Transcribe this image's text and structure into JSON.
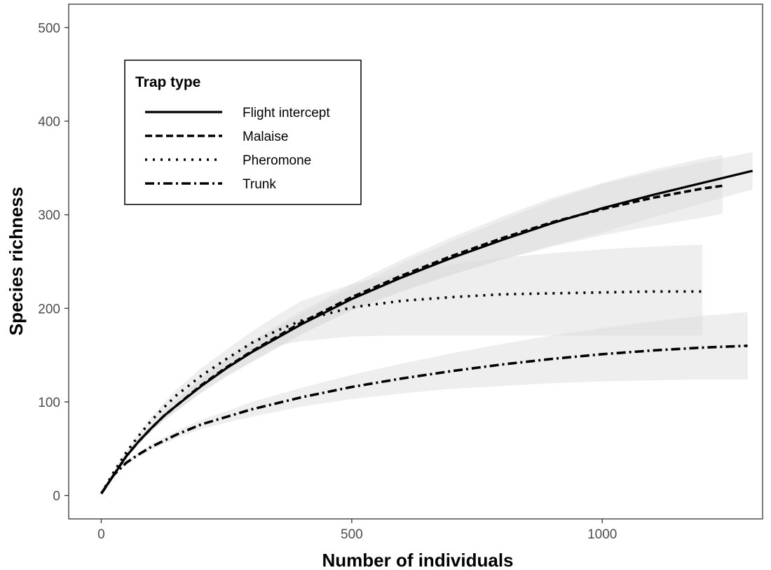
{
  "chart_data": {
    "type": "line",
    "xlabel": "Number of individuals",
    "ylabel": "Species richness",
    "xlim": [
      -65,
      1320
    ],
    "ylim": [
      -25,
      525
    ],
    "xticks": [
      0,
      500,
      1000
    ],
    "yticks": [
      0,
      100,
      200,
      300,
      400,
      500
    ],
    "grid": false,
    "legend": {
      "title": "Trap type",
      "position": "top-left"
    },
    "series": [
      {
        "name": "Flight intercept",
        "dash": "solid",
        "x": [
          0,
          25,
          50,
          75,
          100,
          125,
          150,
          200,
          250,
          300,
          400,
          500,
          600,
          700,
          800,
          900,
          1000,
          1100,
          1200,
          1300
        ],
        "y": [
          2,
          22,
          42,
          58,
          72,
          85,
          96,
          117,
          136,
          153,
          183,
          210,
          233,
          254,
          273,
          291,
          307,
          321,
          334,
          347
        ],
        "lower": [
          2,
          21,
          40,
          55,
          68,
          80,
          90,
          110,
          127,
          142,
          172,
          198,
          218,
          236,
          252,
          267,
          281,
          297,
          312,
          327
        ],
        "upper": [
          2,
          23,
          44,
          61,
          76,
          90,
          102,
          124,
          145,
          164,
          194,
          222,
          248,
          272,
          294,
          315,
          333,
          345,
          356,
          367
        ]
      },
      {
        "name": "Malaise",
        "dash": "dashed",
        "x": [
          0,
          25,
          50,
          75,
          100,
          125,
          150,
          200,
          250,
          300,
          400,
          500,
          600,
          700,
          800,
          900,
          1000,
          1100,
          1200,
          1240
        ],
        "y": [
          2,
          22,
          42,
          58,
          72,
          85,
          96,
          118,
          137,
          154,
          185,
          212,
          235,
          256,
          275,
          292,
          306,
          318,
          328,
          331
        ],
        "lower": [
          2,
          21,
          40,
          55,
          68,
          80,
          90,
          110,
          128,
          143,
          173,
          198,
          218,
          236,
          252,
          266,
          278,
          288,
          297,
          301
        ],
        "upper": [
          2,
          23,
          44,
          61,
          76,
          90,
          102,
          126,
          146,
          165,
          197,
          226,
          252,
          276,
          298,
          318,
          334,
          348,
          360,
          364
        ]
      },
      {
        "name": "Pheromone",
        "dash": "dotted",
        "x": [
          0,
          25,
          50,
          75,
          100,
          125,
          150,
          200,
          250,
          300,
          350,
          400,
          500,
          600,
          700,
          800,
          900,
          1000,
          1100,
          1200
        ],
        "y": [
          2,
          25,
          46,
          64,
          80,
          94,
          107,
          128,
          146,
          163,
          176,
          187,
          201,
          208,
          212,
          215,
          216,
          217,
          218,
          218
        ],
        "lower": [
          2,
          24,
          44,
          61,
          76,
          89,
          101,
          120,
          137,
          151,
          160,
          165,
          170,
          171,
          171,
          171,
          171,
          171,
          171,
          171
        ],
        "upper": [
          2,
          26,
          48,
          67,
          84,
          99,
          113,
          136,
          156,
          175,
          192,
          208,
          226,
          238,
          247,
          254,
          259,
          263,
          266,
          268
        ]
      },
      {
        "name": "Trunk",
        "dash": "dashdot",
        "x": [
          0,
          25,
          50,
          75,
          100,
          150,
          200,
          250,
          300,
          400,
          500,
          600,
          700,
          800,
          900,
          1000,
          1100,
          1200,
          1290
        ],
        "y": [
          2,
          22,
          35,
          44,
          52,
          65,
          76,
          84,
          92,
          105,
          116,
          125,
          133,
          140,
          146,
          151,
          155,
          158,
          160
        ],
        "lower": [
          2,
          21,
          33,
          42,
          49,
          61,
          71,
          78,
          84,
          95,
          103,
          109,
          114,
          117,
          120,
          122,
          123,
          124,
          124
        ],
        "upper": [
          2,
          23,
          37,
          46,
          55,
          69,
          81,
          90,
          100,
          115,
          129,
          141,
          152,
          162,
          171,
          179,
          186,
          192,
          196
        ]
      }
    ]
  }
}
